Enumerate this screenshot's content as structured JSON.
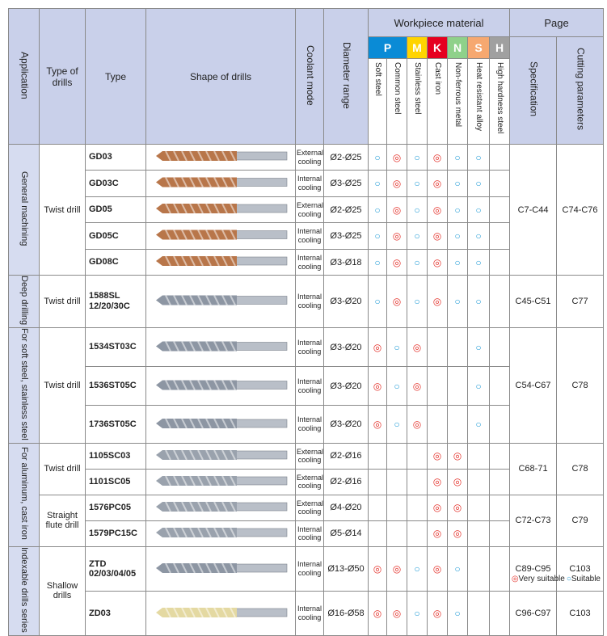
{
  "header": {
    "application": "Application",
    "type_of_drills": "Type of drills",
    "type": "Type",
    "shape": "Shape of drills",
    "coolant": "Coolant mode",
    "diameter": "Diameter range",
    "workpiece_material": "Workpiece material",
    "page": "Page",
    "grades": [
      {
        "letter": "P",
        "color": "#0a8bd6"
      },
      {
        "letter": "M",
        "color": "#ffd400"
      },
      {
        "letter": "K",
        "color": "#e60020"
      },
      {
        "letter": "N",
        "color": "#8fd18a"
      },
      {
        "letter": "S",
        "color": "#f6a870"
      },
      {
        "letter": "H",
        "color": "#a0a0a0"
      }
    ],
    "materials": [
      "Soft steel",
      "Common steel",
      "Stainless steel",
      "Cast iron",
      "Non-ferrous metal",
      "Heat resistant alloy",
      "High hardness steel"
    ],
    "specification": "Specification",
    "cutting": "Cutting parameters"
  },
  "table": {
    "applications": [
      {
        "label": "General machining",
        "drill_types": [
          {
            "label": "Twist drill",
            "page_groups": [
              {
                "specification": "C7-C44",
                "cutting": "C74-C76",
                "drills": [
                  {
                    "type": "GD03",
                    "coolant": "External cooling",
                    "diameter": "Ø2-Ø25",
                    "marks": [
                      "○",
                      "◎",
                      "○",
                      "◎",
                      "○",
                      "○",
                      null
                    ]
                  },
                  {
                    "type": "GD03C",
                    "coolant": "Internal cooling",
                    "diameter": "Ø3-Ø25",
                    "marks": [
                      "○",
                      "◎",
                      "○",
                      "◎",
                      "○",
                      "○",
                      null
                    ]
                  },
                  {
                    "type": "GD05",
                    "coolant": "External cooling",
                    "diameter": "Ø2-Ø25",
                    "marks": [
                      "○",
                      "◎",
                      "○",
                      "◎",
                      "○",
                      "○",
                      null
                    ]
                  },
                  {
                    "type": "GD05C",
                    "coolant": "Internal cooling",
                    "diameter": "Ø3-Ø25",
                    "marks": [
                      "○",
                      "◎",
                      "○",
                      "◎",
                      "○",
                      "○",
                      null
                    ]
                  },
                  {
                    "type": "GD08C",
                    "coolant": "Internal cooling",
                    "diameter": "Ø3-Ø18",
                    "marks": [
                      "○",
                      "◎",
                      "○",
                      "◎",
                      "○",
                      "○",
                      null
                    ]
                  }
                ]
              }
            ]
          }
        ]
      },
      {
        "label": "Deep drilling",
        "drill_types": [
          {
            "label": "Twist drill",
            "page_groups": [
              {
                "specification": "C45-C51",
                "cutting": "C77",
                "drills": [
                  {
                    "type": "1588SL 12/20/30C",
                    "coolant": "Internal cooling",
                    "diameter": "Ø3-Ø20",
                    "marks": [
                      "○",
                      "◎",
                      "○",
                      "◎",
                      "○",
                      "○",
                      null
                    ]
                  }
                ]
              }
            ]
          }
        ]
      },
      {
        "label": "For soft steel, stainless steel",
        "drill_types": [
          {
            "label": "Twist drill",
            "page_groups": [
              {
                "specification": "C54-C67",
                "cutting": "C78",
                "drills": [
                  {
                    "type": "1534ST03C",
                    "coolant": "Internal cooling",
                    "diameter": "Ø3-Ø20",
                    "marks": [
                      "◎",
                      "○",
                      "◎",
                      null,
                      null,
                      "○",
                      null
                    ]
                  },
                  {
                    "type": "1536ST05C",
                    "coolant": "Internal cooling",
                    "diameter": "Ø3-Ø20",
                    "marks": [
                      "◎",
                      "○",
                      "◎",
                      null,
                      null,
                      "○",
                      null
                    ]
                  },
                  {
                    "type": "1736ST05C",
                    "coolant": "Internal cooling",
                    "diameter": "Ø3-Ø20",
                    "marks": [
                      "◎",
                      "○",
                      "◎",
                      null,
                      null,
                      "○",
                      null
                    ]
                  }
                ]
              }
            ]
          }
        ]
      },
      {
        "label": "For aluminum, cast iron",
        "drill_types": [
          {
            "label": "Twist drill",
            "page_groups": [
              {
                "specification": "C68-71",
                "cutting": "C78",
                "drills": [
                  {
                    "type": "1105SC03",
                    "coolant": "External cooling",
                    "diameter": "Ø2-Ø16",
                    "marks": [
                      null,
                      null,
                      null,
                      "◎",
                      "◎",
                      null,
                      null
                    ]
                  },
                  {
                    "type": "1101SC05",
                    "coolant": "External cooling",
                    "diameter": "Ø2-Ø16",
                    "marks": [
                      null,
                      null,
                      null,
                      "◎",
                      "◎",
                      null,
                      null
                    ]
                  }
                ]
              }
            ]
          },
          {
            "label": "Straight flute drill",
            "page_groups": [
              {
                "specification": "C72-C73",
                "cutting": "C79",
                "drills": [
                  {
                    "type": "1576PC05",
                    "coolant": "External cooling",
                    "diameter": "Ø4-Ø20",
                    "marks": [
                      null,
                      null,
                      null,
                      "◎",
                      "◎",
                      null,
                      null
                    ]
                  },
                  {
                    "type": "1579PC15C",
                    "coolant": "Internal cooling",
                    "diameter": "Ø5-Ø14",
                    "marks": [
                      null,
                      null,
                      null,
                      "◎",
                      "◎",
                      null,
                      null
                    ]
                  }
                ]
              }
            ]
          }
        ]
      },
      {
        "label": "Indexable drills series",
        "drill_types": [
          {
            "label": "Shallow drills",
            "page_groups": [
              {
                "specification": "C89-C95",
                "cutting": "C103",
                "drills": [
                  {
                    "type": "ZTD 02/03/04/05",
                    "coolant": "Internal cooling",
                    "diameter": "Ø13-Ø50",
                    "marks": [
                      "◎",
                      "◎",
                      "○",
                      "◎",
                      "○",
                      null,
                      null
                    ]
                  }
                ]
              },
              {
                "specification": "C96-C97",
                "cutting": "C103",
                "drills": [
                  {
                    "type": "ZD03",
                    "coolant": "Internal cooling",
                    "diameter": "Ø16-Ø58",
                    "marks": [
                      "◎",
                      "◎",
                      "○",
                      "◎",
                      "○",
                      null,
                      null
                    ]
                  }
                ]
              }
            ]
          }
        ]
      }
    ]
  },
  "legend": [
    {
      "symbol": "◎",
      "label": "Very suitable"
    },
    {
      "symbol": "○",
      "label": "Suitable"
    }
  ]
}
